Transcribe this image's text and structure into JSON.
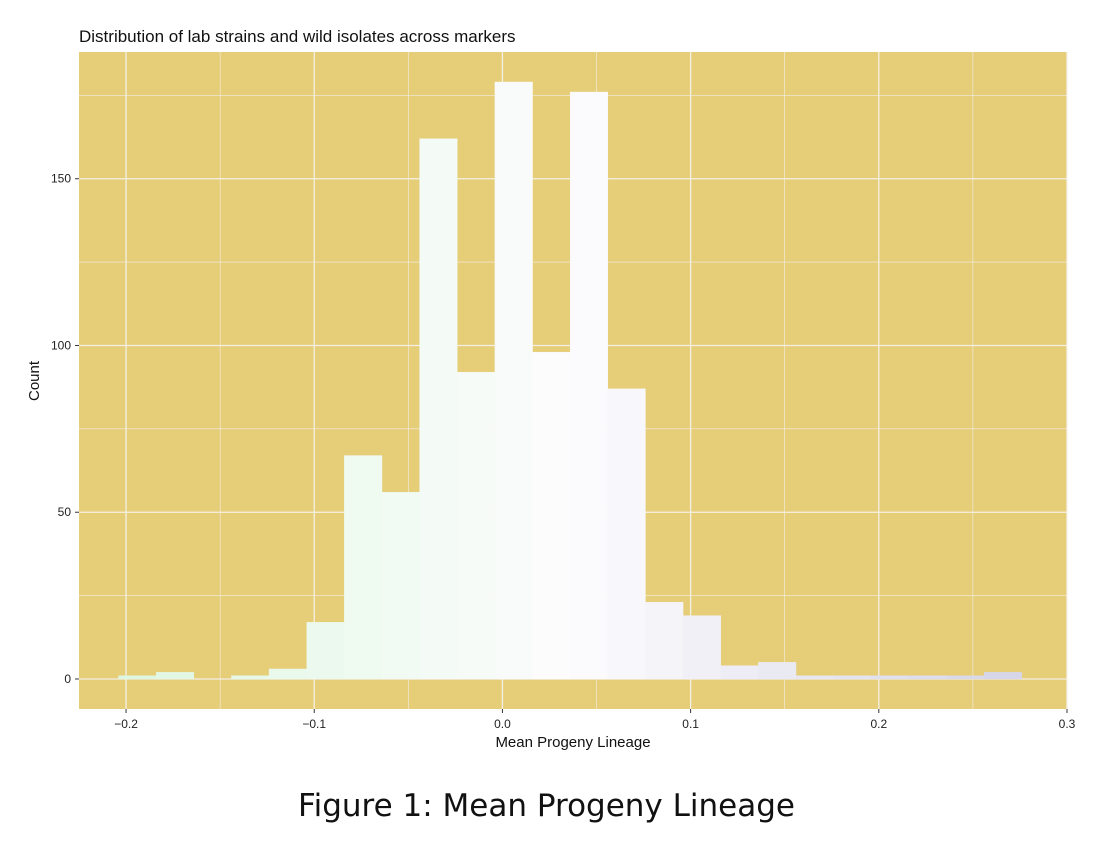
{
  "figure": {
    "caption": "Figure 1:  Mean Progeny Lineage"
  },
  "colors": {
    "panel_background": "#e6cd78",
    "grid": "#f3f0e6",
    "bar_gradient_start": "#dff7e2",
    "bar_gradient_middle": "#fdfcfe",
    "bar_gradient_end": "#d6d6e8"
  },
  "chart_data": {
    "type": "bar",
    "title": "Distribution of lab strains and wild isolates across markers",
    "xlabel": "Mean Progeny Lineage",
    "ylabel": "Count",
    "xlim": [
      -0.225,
      0.3
    ],
    "ylim": [
      -9,
      188
    ],
    "x_ticks": [
      -0.2,
      -0.1,
      0.0,
      0.1,
      0.2,
      0.3
    ],
    "x_tick_labels": [
      "−0.2",
      "−0.1",
      "0.0",
      "0.1",
      "0.2",
      "0.3"
    ],
    "y_ticks": [
      0,
      50,
      100,
      150
    ],
    "y_tick_labels": [
      "0",
      "50",
      "100",
      "150"
    ],
    "grid": true,
    "bin_width": 0.02,
    "bins": [
      {
        "x0": -0.204,
        "x1": -0.184,
        "count": 1
      },
      {
        "x0": -0.184,
        "x1": -0.164,
        "count": 2
      },
      {
        "x0": -0.164,
        "x1": -0.144,
        "count": 0
      },
      {
        "x0": -0.144,
        "x1": -0.124,
        "count": 1
      },
      {
        "x0": -0.124,
        "x1": -0.104,
        "count": 3
      },
      {
        "x0": -0.104,
        "x1": -0.084,
        "count": 17
      },
      {
        "x0": -0.084,
        "x1": -0.064,
        "count": 67
      },
      {
        "x0": -0.064,
        "x1": -0.044,
        "count": 56
      },
      {
        "x0": -0.044,
        "x1": -0.024,
        "count": 162
      },
      {
        "x0": -0.024,
        "x1": -0.004,
        "count": 92
      },
      {
        "x0": -0.004,
        "x1": 0.016,
        "count": 179
      },
      {
        "x0": 0.016,
        "x1": 0.036,
        "count": 98
      },
      {
        "x0": 0.036,
        "x1": 0.056,
        "count": 176
      },
      {
        "x0": 0.056,
        "x1": 0.076,
        "count": 87
      },
      {
        "x0": 0.076,
        "x1": 0.096,
        "count": 23
      },
      {
        "x0": 0.096,
        "x1": 0.116,
        "count": 19
      },
      {
        "x0": 0.116,
        "x1": 0.136,
        "count": 4
      },
      {
        "x0": 0.136,
        "x1": 0.156,
        "count": 5
      },
      {
        "x0": 0.156,
        "x1": 0.176,
        "count": 1
      },
      {
        "x0": 0.176,
        "x1": 0.196,
        "count": 1
      },
      {
        "x0": 0.196,
        "x1": 0.216,
        "count": 1
      },
      {
        "x0": 0.216,
        "x1": 0.236,
        "count": 1
      },
      {
        "x0": 0.236,
        "x1": 0.256,
        "count": 1
      },
      {
        "x0": 0.256,
        "x1": 0.276,
        "count": 2
      }
    ]
  }
}
